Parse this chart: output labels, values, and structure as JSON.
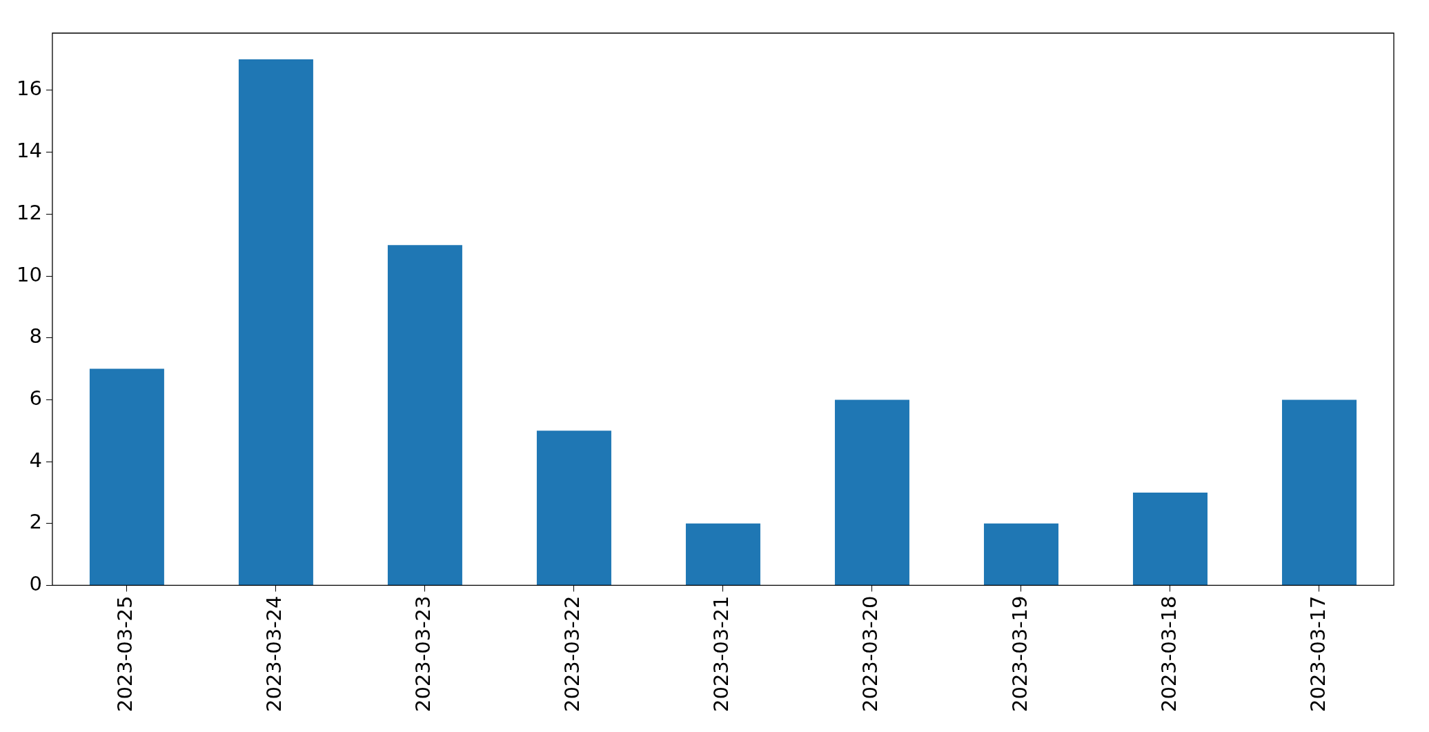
{
  "chart_data": {
    "type": "bar",
    "categories": [
      "2023-03-25",
      "2023-03-24",
      "2023-03-23",
      "2023-03-22",
      "2023-03-21",
      "2023-03-20",
      "2023-03-19",
      "2023-03-18",
      "2023-03-17"
    ],
    "values": [
      7,
      17,
      11,
      5,
      2,
      6,
      2,
      3,
      6
    ],
    "color": "#1f77b4",
    "ylim": [
      0,
      17.85
    ],
    "yticks": [
      0,
      2,
      4,
      6,
      8,
      10,
      12,
      14,
      16
    ]
  }
}
